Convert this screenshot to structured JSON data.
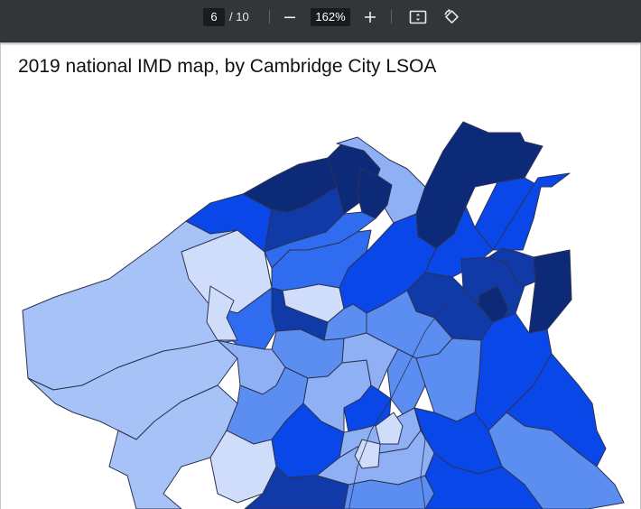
{
  "toolbar": {
    "current_page": "6",
    "page_total": "/ 10",
    "zoom": "162%",
    "icons": [
      "minus-icon",
      "plus-icon",
      "fit-page-icon",
      "rotate-icon"
    ]
  },
  "document": {
    "title": "2019 national IMD map, by Cambridge City LSOA"
  },
  "map_palette": {
    "deepest": "#0c2a78",
    "dark": "#0f3aa8",
    "strong": "#0a47e8",
    "medium": "#2f6cf0",
    "mid": "#5b8ef0",
    "light": "#8fb0f4",
    "pale": "#a6c2f7",
    "palest": "#cfdcfa"
  }
}
